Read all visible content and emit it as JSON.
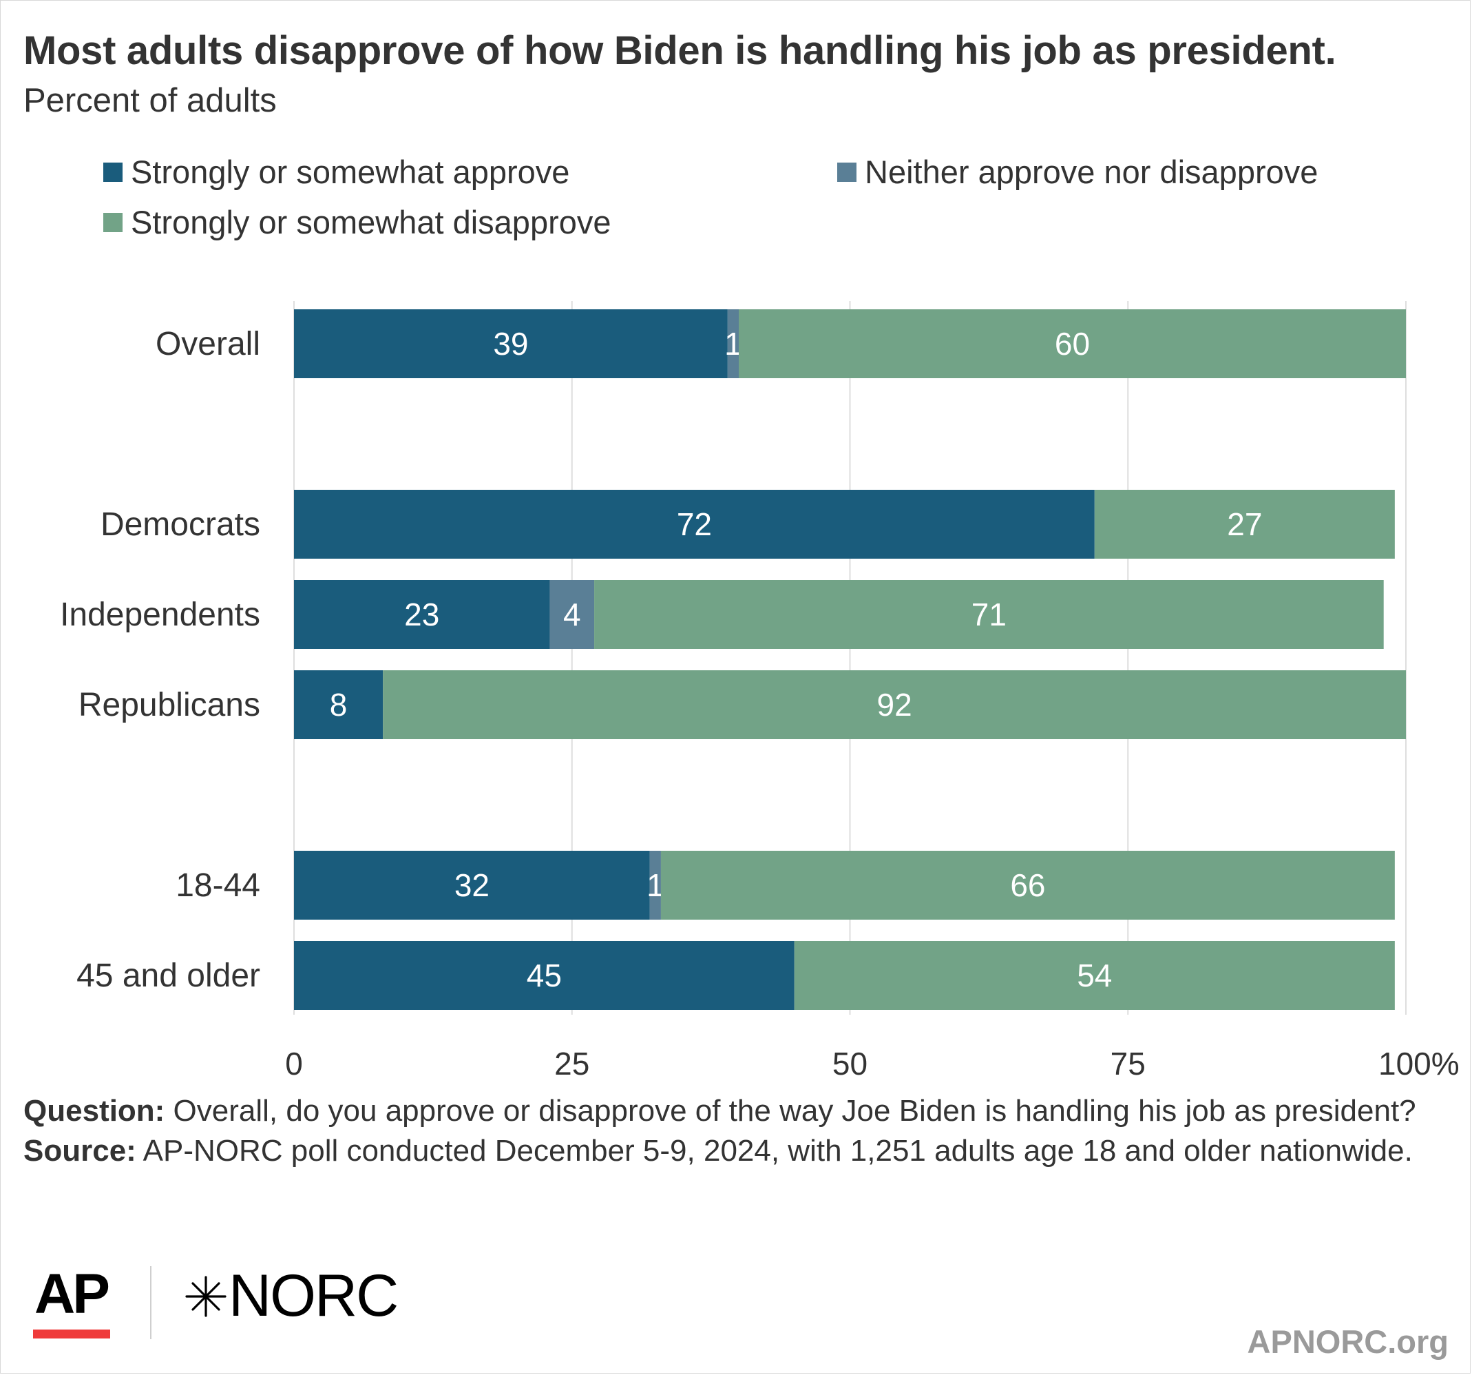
{
  "header": {
    "title": "Most adults disapprove of how Biden is handling his job as president.",
    "subtitle": "Percent of adults"
  },
  "legend": [
    {
      "label": "Strongly or somewhat approve",
      "color": "#1a5c7c"
    },
    {
      "label": "Neither approve nor disapprove",
      "color": "#5a7f96"
    },
    {
      "label": "Strongly or somewhat disapprove",
      "color": "#72a387"
    }
  ],
  "chart_data": {
    "type": "bar",
    "orientation": "horizontal",
    "stacked": true,
    "title": "Most adults disapprove of how Biden is handling his job as president.",
    "subtitle": "Percent of adults",
    "categories": [
      "Overall",
      "Democrats",
      "Independents",
      "Republicans",
      "18-44",
      "45 and older"
    ],
    "groups": [
      [
        "Overall"
      ],
      [
        "Democrats",
        "Independents",
        "Republicans"
      ],
      [
        "18-44",
        "45 and older"
      ]
    ],
    "series": [
      {
        "name": "Strongly or somewhat approve",
        "color": "#1a5c7c",
        "values": [
          39,
          72,
          23,
          8,
          32,
          45
        ]
      },
      {
        "name": "Neither approve nor disapprove",
        "color": "#5a7f96",
        "values": [
          1,
          0,
          4,
          0,
          1,
          0
        ]
      },
      {
        "name": "Strongly or somewhat disapprove",
        "color": "#72a387",
        "values": [
          60,
          27,
          71,
          92,
          66,
          54
        ]
      }
    ],
    "xlim": [
      0,
      100
    ],
    "xticks": [
      "0",
      "25",
      "50",
      "75",
      "100%"
    ],
    "grid": true,
    "legend_position": "top"
  },
  "notes": {
    "question_label": "Question:",
    "question_text": " Overall, do you approve or disapprove of the way Joe Biden is handling his job as president?",
    "source_label": "Source:",
    "source_text": " AP-NORC poll conducted December 5-9, 2024, with 1,251 adults age 18 and older nationwide."
  },
  "branding": {
    "ap": "AP",
    "norc": "NORC",
    "site": "APNORC.org",
    "ap_bar_color": "#ef3a3a"
  }
}
